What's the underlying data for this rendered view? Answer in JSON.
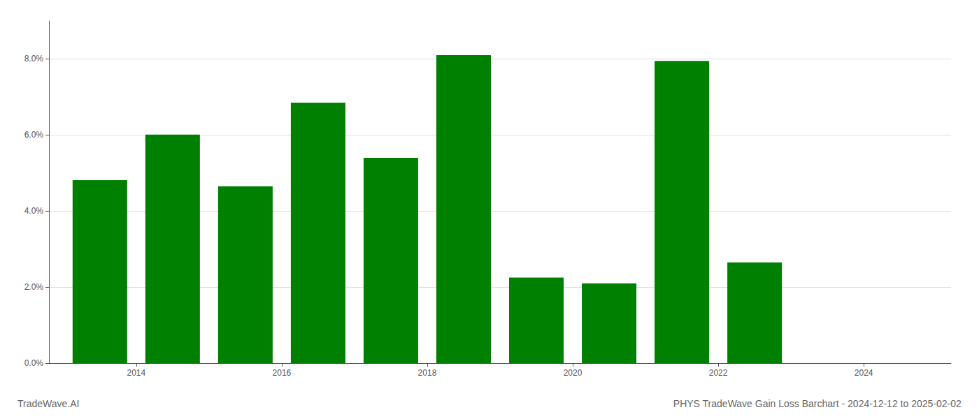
{
  "chart_data": {
    "type": "bar",
    "title": "PHYS TradeWave Gain Loss Barchart - 2024-12-12 to 2025-02-02",
    "annotations": [
      "TradeWave.AI"
    ],
    "x": [
      2013.5,
      2014.5,
      2015.5,
      2016.5,
      2017.5,
      2018.5,
      2019.5,
      2020.5,
      2021.5,
      2022.5
    ],
    "values": [
      0.0481,
      0.0601,
      0.0465,
      0.0685,
      0.054,
      0.081,
      0.0225,
      0.021,
      0.0795,
      0.0265
    ],
    "color": "#008000",
    "xlim": [
      2012.8,
      2025.2
    ],
    "xticks": [
      2014,
      2016,
      2018,
      2020,
      2022,
      2024
    ],
    "ylim": [
      0,
      0.09
    ],
    "yticks": [
      {
        "value": 0.0,
        "label": "0.0%"
      },
      {
        "value": 0.02,
        "label": "2.0%"
      },
      {
        "value": 0.04,
        "label": "4.0%"
      },
      {
        "value": 0.06,
        "label": "6.0%"
      },
      {
        "value": 0.08,
        "label": "8.0%"
      }
    ],
    "grid": true
  }
}
